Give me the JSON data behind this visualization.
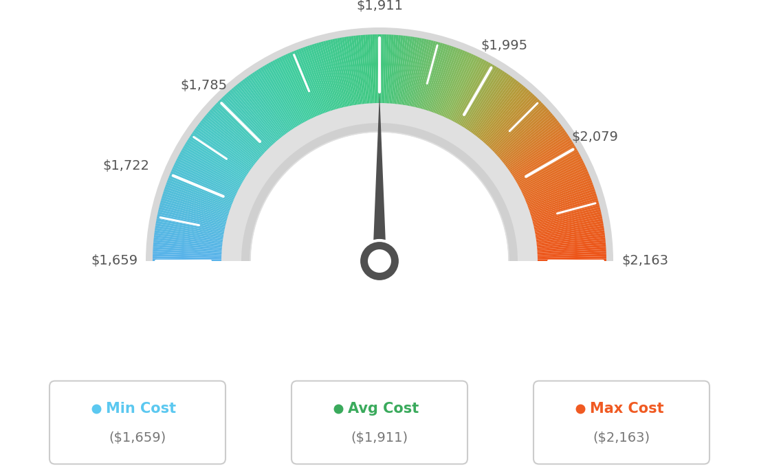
{
  "min_val": 1659,
  "max_val": 2163,
  "avg_val": 1911,
  "label_values": [
    1659,
    1722,
    1785,
    1911,
    1995,
    2079,
    2163
  ],
  "label_strings": [
    "$1,659",
    "$1,722",
    "$1,785",
    "$1,911",
    "$1,995",
    "$2,079",
    "$2,163"
  ],
  "min_label": "Min Cost",
  "avg_label": "Avg Cost",
  "max_label": "Max Cost",
  "min_color": "#5bc8f0",
  "avg_color": "#3aaa5c",
  "max_color": "#f05a22",
  "legend_value_min": "($1,659)",
  "legend_value_avg": "($1,911)",
  "legend_value_max": "($2,163)",
  "bg_color": "#ffffff",
  "needle_color": "#505050",
  "color_stops": [
    [
      0.0,
      [
        0.35,
        0.7,
        0.92
      ]
    ],
    [
      0.18,
      [
        0.3,
        0.78,
        0.8
      ]
    ],
    [
      0.36,
      [
        0.25,
        0.8,
        0.62
      ]
    ],
    [
      0.5,
      [
        0.25,
        0.78,
        0.5
      ]
    ],
    [
      0.64,
      [
        0.55,
        0.72,
        0.35
      ]
    ],
    [
      0.72,
      [
        0.72,
        0.6,
        0.22
      ]
    ],
    [
      0.82,
      [
        0.88,
        0.45,
        0.15
      ]
    ],
    [
      1.0,
      [
        0.93,
        0.33,
        0.1
      ]
    ]
  ]
}
